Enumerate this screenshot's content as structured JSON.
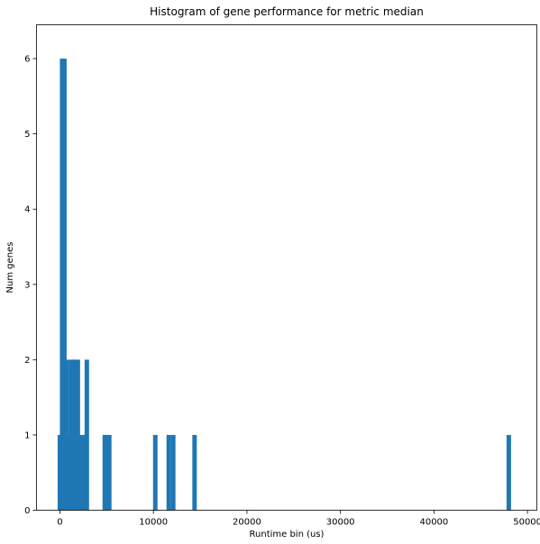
{
  "chart_data": {
    "type": "bar",
    "title": "Histogram of gene performance for metric median",
    "xlabel": "Runtime bin (us)",
    "ylabel": "Num genes",
    "xlim": [
      -2500,
      51000
    ],
    "ylim": [
      0,
      6.45
    ],
    "xticks": [
      0,
      10000,
      20000,
      30000,
      40000,
      50000
    ],
    "yticks": [
      0,
      1,
      2,
      3,
      4,
      5,
      6
    ],
    "bar_color": "#1f77b4",
    "bin_width": 480,
    "bins": [
      {
        "x0": -240,
        "count": 1
      },
      {
        "x0": 0,
        "count": 6
      },
      {
        "x0": 240,
        "count": 6
      },
      {
        "x0": 480,
        "count": 2
      },
      {
        "x0": 720,
        "count": 1
      },
      {
        "x0": 960,
        "count": 2
      },
      {
        "x0": 1200,
        "count": 2
      },
      {
        "x0": 1440,
        "count": 2
      },
      {
        "x0": 1680,
        "count": 2
      },
      {
        "x0": 1920,
        "count": 1
      },
      {
        "x0": 2160,
        "count": 1
      },
      {
        "x0": 2400,
        "count": 1
      },
      {
        "x0": 2640,
        "count": 2
      },
      {
        "x0": 4560,
        "count": 1
      },
      {
        "x0": 4800,
        "count": 1
      },
      {
        "x0": 5040,
        "count": 1
      },
      {
        "x0": 9960,
        "count": 1
      },
      {
        "x0": 11400,
        "count": 1
      },
      {
        "x0": 11880,
        "count": 1
      },
      {
        "x0": 14160,
        "count": 1
      },
      {
        "x0": 47760,
        "count": 1
      }
    ]
  }
}
